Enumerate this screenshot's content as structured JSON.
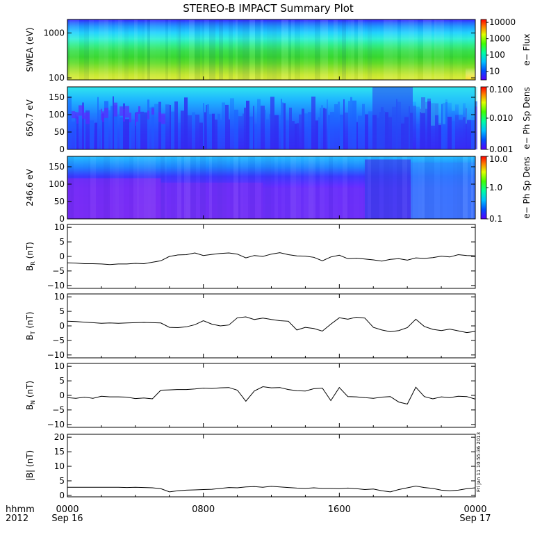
{
  "chart_data": {
    "type": "line",
    "title": "STEREO-B IMPACT Summary Plot",
    "time_axis": {
      "corner_labels": [
        "hhmm",
        "2012"
      ],
      "ticks": [
        {
          "hour": 0,
          "time": "0000",
          "date": "Sep 16"
        },
        {
          "hour": 8,
          "time": "0800",
          "date": ""
        },
        {
          "hour": 16,
          "time": "1600",
          "date": ""
        },
        {
          "hour": 24,
          "time": "0000",
          "date": "Sep 17"
        }
      ],
      "range_hours": [
        0,
        24
      ]
    },
    "spectrograms": [
      {
        "id": "swea",
        "ylabel": "SWEA (eV)",
        "yscale": "log",
        "ylim": [
          90,
          2000
        ],
        "yticks": [
          "1000",
          "100"
        ],
        "ytick_values": [
          1000,
          100
        ],
        "colorbar_label": "e− Flux",
        "colorbar_ticks": [
          "10000",
          "1000",
          "100",
          "10"
        ],
        "colorbar_values": [
          10000,
          1000,
          100,
          10
        ],
        "colorbar_range": [
          3,
          15000
        ]
      },
      {
        "id": "pad650",
        "ylabel": "650.7 eV",
        "yscale": "linear",
        "ylim": [
          0,
          180
        ],
        "yticks": [
          "150",
          "100",
          "50",
          "0"
        ],
        "ytick_values": [
          150,
          100,
          50,
          0
        ],
        "colorbar_label": "e− Ph Sp Dens",
        "colorbar_ticks": [
          "0.100",
          "0.010",
          "0.001"
        ],
        "colorbar_values": [
          0.1,
          0.01,
          0.001
        ],
        "colorbar_range": [
          0.001,
          0.1
        ]
      },
      {
        "id": "pad246",
        "ylabel": "246.6 eV",
        "yscale": "linear",
        "ylim": [
          0,
          180
        ],
        "yticks": [
          "150",
          "100",
          "50",
          "0"
        ],
        "ytick_values": [
          150,
          100,
          50,
          0
        ],
        "colorbar_label": "e− Ph Sp Dens",
        "colorbar_ticks": [
          "10.0",
          "1.0",
          "0.1"
        ],
        "colorbar_values": [
          10,
          1,
          0.1
        ],
        "colorbar_range": [
          0.1,
          10
        ]
      }
    ],
    "line_panels": [
      {
        "id": "br",
        "ylabel_main": "B",
        "ylabel_sub": "R",
        "ylabel_unit": " (nT)",
        "ylim": [
          -11,
          11
        ],
        "yticks": [
          "10",
          "5",
          "0",
          "−5",
          "−10"
        ],
        "ytick_values": [
          10,
          5,
          0,
          -5,
          -10
        ],
        "x": [
          0,
          0.5,
          1,
          1.5,
          2,
          2.5,
          3,
          3.5,
          4,
          4.5,
          5,
          5.5,
          6,
          6.5,
          7,
          7.5,
          8,
          8.5,
          9,
          9.5,
          10,
          10.5,
          11,
          11.5,
          12,
          12.5,
          13,
          13.5,
          14,
          14.5,
          15,
          15.5,
          16,
          16.5,
          17,
          17.5,
          18,
          18.5,
          19,
          19.5,
          20,
          20.5,
          21,
          21.5,
          22,
          22.5,
          23,
          23.5,
          24
        ],
        "values": [
          -2.2,
          -2.3,
          -2.5,
          -2.5,
          -2.6,
          -2.8,
          -2.6,
          -2.6,
          -2.4,
          -2.5,
          -2.0,
          -1.5,
          0.0,
          0.5,
          0.6,
          1.2,
          0.3,
          0.7,
          1.0,
          1.2,
          0.8,
          -0.5,
          0.3,
          0.0,
          0.8,
          1.3,
          0.6,
          0.2,
          0.1,
          -0.3,
          -1.5,
          -0.2,
          0.4,
          -0.8,
          -0.6,
          -0.9,
          -1.2,
          -1.6,
          -1.0,
          -0.8,
          -1.3,
          -0.5,
          -0.7,
          -0.4,
          0.1,
          -0.2,
          0.6,
          0.3,
          0.2
        ]
      },
      {
        "id": "bt",
        "ylabel_main": "B",
        "ylabel_sub": "T",
        "ylabel_unit": " (nT)",
        "ylim": [
          -11,
          11
        ],
        "yticks": [
          "10",
          "5",
          "0",
          "−5",
          "−10"
        ],
        "ytick_values": [
          10,
          5,
          0,
          -5,
          -10
        ],
        "x": [
          0,
          0.5,
          1,
          1.5,
          2,
          2.5,
          3,
          3.5,
          4,
          4.5,
          5,
          5.5,
          6,
          6.5,
          7,
          7.5,
          8,
          8.5,
          9,
          9.5,
          10,
          10.5,
          11,
          11.5,
          12,
          12.5,
          13,
          13.5,
          14,
          14.5,
          15,
          15.5,
          16,
          16.5,
          17,
          17.5,
          18,
          18.5,
          19,
          19.5,
          20,
          20.5,
          21,
          21.5,
          22,
          22.5,
          23,
          23.5,
          24
        ],
        "values": [
          1.6,
          1.5,
          1.3,
          1.1,
          0.9,
          1.0,
          0.9,
          1.0,
          1.1,
          1.2,
          1.1,
          1.0,
          -0.5,
          -0.6,
          -0.3,
          0.4,
          1.8,
          0.6,
          0.0,
          0.3,
          2.8,
          3.1,
          2.2,
          2.7,
          2.2,
          1.8,
          1.6,
          -1.4,
          -0.5,
          -0.9,
          -1.8,
          0.6,
          2.8,
          2.3,
          3.0,
          2.7,
          -0.5,
          -1.4,
          -2.0,
          -1.6,
          -0.6,
          2.3,
          -0.2,
          -1.2,
          -1.6,
          -1.1,
          -1.7,
          -2.3,
          -1.9
        ]
      },
      {
        "id": "bn",
        "ylabel_main": "B",
        "ylabel_sub": "N",
        "ylabel_unit": " (nT)",
        "ylim": [
          -11,
          11
        ],
        "yticks": [
          "10",
          "5",
          "0",
          "−5",
          "−10"
        ],
        "ytick_values": [
          10,
          5,
          0,
          -5,
          -10
        ],
        "x": [
          0,
          0.5,
          1,
          1.5,
          2,
          2.5,
          3,
          3.5,
          4,
          4.5,
          5,
          5.5,
          6,
          6.5,
          7,
          7.5,
          8,
          8.5,
          9,
          9.5,
          10,
          10.5,
          11,
          11.5,
          12,
          12.5,
          13,
          13.5,
          14,
          14.5,
          15,
          15.5,
          16,
          16.5,
          17,
          17.5,
          18,
          18.5,
          19,
          19.5,
          20,
          20.5,
          21,
          21.5,
          22,
          22.5,
          23,
          23.5,
          24
        ],
        "values": [
          -0.8,
          -1.0,
          -0.6,
          -1.0,
          -0.3,
          -0.5,
          -0.5,
          -0.6,
          -1.1,
          -0.9,
          -1.2,
          1.8,
          1.9,
          2.0,
          2.0,
          2.2,
          2.5,
          2.4,
          2.6,
          2.7,
          1.8,
          -2.0,
          1.5,
          3.0,
          2.6,
          2.7,
          2.0,
          1.6,
          1.5,
          2.3,
          2.5,
          -1.8,
          2.7,
          -0.4,
          -0.5,
          -0.8,
          -1.0,
          -0.6,
          -0.4,
          -2.3,
          -3.0,
          2.8,
          -0.4,
          -1.2,
          -0.5,
          -0.8,
          -0.3,
          -0.4,
          -1.3
        ]
      },
      {
        "id": "bmag",
        "ylabel_main": "|B| (nT)",
        "ylabel_sub": "",
        "ylabel_unit": "",
        "ylim": [
          -0.5,
          21
        ],
        "yticks": [
          "20",
          "15",
          "10",
          "5",
          "0"
        ],
        "ytick_values": [
          20,
          15,
          10,
          5,
          0
        ],
        "x": [
          0,
          0.5,
          1,
          1.5,
          2,
          2.5,
          3,
          3.5,
          4,
          4.5,
          5,
          5.5,
          6,
          6.5,
          7,
          7.5,
          8,
          8.5,
          9,
          9.5,
          10,
          10.5,
          11,
          11.5,
          12,
          12.5,
          13,
          13.5,
          14,
          14.5,
          15,
          15.5,
          16,
          16.5,
          17,
          17.5,
          18,
          18.5,
          19,
          19.5,
          20,
          20.5,
          21,
          21.5,
          22,
          22.5,
          23,
          23.5,
          24
        ],
        "values": [
          2.8,
          2.8,
          2.8,
          2.8,
          2.8,
          2.8,
          2.8,
          2.7,
          2.8,
          2.7,
          2.6,
          2.3,
          1.2,
          1.6,
          1.8,
          1.9,
          2.0,
          2.1,
          2.4,
          2.7,
          2.6,
          2.9,
          3.0,
          2.8,
          3.1,
          2.9,
          2.7,
          2.5,
          2.4,
          2.6,
          2.4,
          2.4,
          2.3,
          2.5,
          2.3,
          2.0,
          2.2,
          1.6,
          1.2,
          2.0,
          2.6,
          3.2,
          2.7,
          2.4,
          1.8,
          1.6,
          1.8,
          2.3,
          2.6
        ]
      }
    ],
    "timestamp": "Fri Jan 11 10:55:36 2013"
  }
}
